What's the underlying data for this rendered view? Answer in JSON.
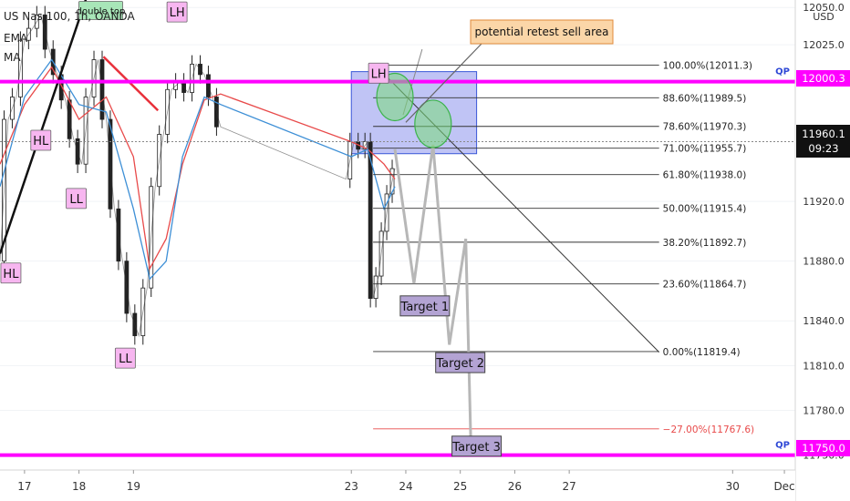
{
  "symbol_title": "US Nas 100, 1h, OANDA",
  "indicators": [
    "EMA",
    "MA"
  ],
  "price_scale": {
    "currency": "USD",
    "ticks": [
      "12050.0",
      "12025.0",
      "11920.0",
      "11880.0",
      "11840.0",
      "11810.0",
      "11780.0",
      "11750.0"
    ],
    "qp_upper": "12000.3",
    "qp_lower": "11750.0",
    "current_price": "11960.1",
    "countdown": "09:23",
    "qp_marker": "QP"
  },
  "date_axis": [
    "17",
    "18",
    "19",
    "23",
    "24",
    "25",
    "26",
    "27",
    "30",
    "Dec"
  ],
  "chart_data": {
    "type": "line",
    "title": "US Nas 100, 1h, OANDA",
    "xlabel": "",
    "ylabel": "",
    "ylim": [
      11740,
      12055
    ],
    "x_domain": [
      16.55,
      31.15
    ],
    "fibonacci": [
      {
        "label": "100.00%(12011.3)",
        "value": 12011.3
      },
      {
        "label": "88.60%(11989.5)",
        "value": 11989.5
      },
      {
        "label": "78.60%(11970.3)",
        "value": 11970.3
      },
      {
        "label": "71.00%(11955.7)",
        "value": 11955.7
      },
      {
        "label": "61.80%(11938.0)",
        "value": 11938.0
      },
      {
        "label": "50.00%(11915.4)",
        "value": 11915.4
      },
      {
        "label": "38.20%(11892.7)",
        "value": 11892.7
      },
      {
        "label": "23.60%(11864.7)",
        "value": 11864.7
      },
      {
        "label": "0.00%(11819.4)",
        "value": 11819.4
      },
      {
        "label": "−27.00%(11767.6)",
        "value": 11767.6
      }
    ],
    "fib_x_range": [
      23.4,
      28.65
    ],
    "horizontal_levels": [
      {
        "name": "QP",
        "value": 12000.3,
        "color": "#ff00ff"
      },
      {
        "name": "QP",
        "value": 11750.0,
        "color": "#ff00ff"
      }
    ],
    "current_price": 11960.1,
    "sell_zone": {
      "x": [
        23.0,
        25.3
      ],
      "y": [
        11952,
        12007
      ]
    },
    "callout": "potential retest sell area",
    "structure_labels": [
      {
        "text": "HL",
        "x": 16.75,
        "y": 11872
      },
      {
        "text": "HL",
        "x": 17.3,
        "y": 11961
      },
      {
        "text": "LL",
        "x": 17.95,
        "y": 11922
      },
      {
        "text": "double top",
        "x": 18.4,
        "y": 12048
      },
      {
        "text": "LH",
        "x": 19.8,
        "y": 12047
      },
      {
        "text": "LL",
        "x": 18.85,
        "y": 11815
      },
      {
        "text": "LH",
        "x": 23.5,
        "y": 12006
      }
    ],
    "targets": [
      {
        "label": "Target 1",
        "x": 24.35,
        "y": 11850
      },
      {
        "label": "Target 2",
        "x": 25.0,
        "y": 11812
      },
      {
        "label": "Target 3",
        "x": 25.3,
        "y": 11756
      }
    ],
    "projected_path": {
      "x": [
        23.8,
        24.15,
        24.5,
        24.8,
        25.1,
        25.2
      ],
      "y": [
        11955,
        11865,
        11958,
        11824,
        11895,
        11750
      ]
    },
    "price_series": {
      "x": [
        16.55,
        16.7,
        16.85,
        17.0,
        17.15,
        17.3,
        17.45,
        17.6,
        17.75,
        17.9,
        18.05,
        18.2,
        18.35,
        18.5,
        18.65,
        18.8,
        18.95,
        19.1,
        19.25,
        19.4,
        19.55,
        19.7,
        19.85,
        20.0,
        20.15,
        20.3,
        20.45,
        20.6,
        22.9,
        23.05,
        23.2,
        23.3,
        23.4,
        23.5,
        23.6,
        23.7,
        23.8
      ],
      "y": [
        11880,
        11975,
        11990,
        12028,
        12036,
        12045,
        12022,
        12005,
        11988,
        11962,
        11945,
        11990,
        12015,
        11975,
        11915,
        11880,
        11845,
        11830,
        11862,
        11930,
        11965,
        11995,
        12000,
        11993,
        12012,
        12005,
        11990,
        11970,
        11935,
        11960,
        11955,
        11960,
        11855,
        11870,
        11900,
        11925,
        11942
      ]
    },
    "ema_series": {
      "x": [
        16.55,
        17.0,
        17.5,
        18.0,
        18.5,
        19.0,
        19.3,
        19.6,
        19.9,
        20.3,
        20.6,
        23.0,
        23.3,
        23.6,
        23.8
      ],
      "y": [
        11930,
        11990,
        12015,
        11985,
        11980,
        11915,
        11868,
        11880,
        11950,
        11990,
        11985,
        11950,
        11955,
        11915,
        11930
      ]
    },
    "ma_series": {
      "x": [
        16.55,
        17.0,
        17.5,
        18.0,
        18.5,
        19.0,
        19.3,
        19.6,
        19.9,
        20.3,
        20.6,
        23.0,
        23.3,
        23.6,
        23.8
      ],
      "y": [
        11945,
        11985,
        12010,
        11975,
        11990,
        11950,
        11875,
        11895,
        11945,
        11988,
        11992,
        11960,
        11955,
        11945,
        11935
      ]
    },
    "trendlines": [
      {
        "x": [
          16.55,
          18.15
        ],
        "y": [
          11885,
          12058
        ],
        "color": "#111111"
      },
      {
        "x": [
          18.45,
          19.45
        ],
        "y": [
          12017,
          11981
        ],
        "color": "#e8303a"
      },
      {
        "x": [
          23.45,
          28.65
        ],
        "y": [
          12011,
          11819
        ],
        "color": "#333333"
      },
      {
        "x": [
          23.95,
          24.3
        ],
        "y": [
          11978,
          12022
        ],
        "color": "#888888"
      }
    ]
  }
}
